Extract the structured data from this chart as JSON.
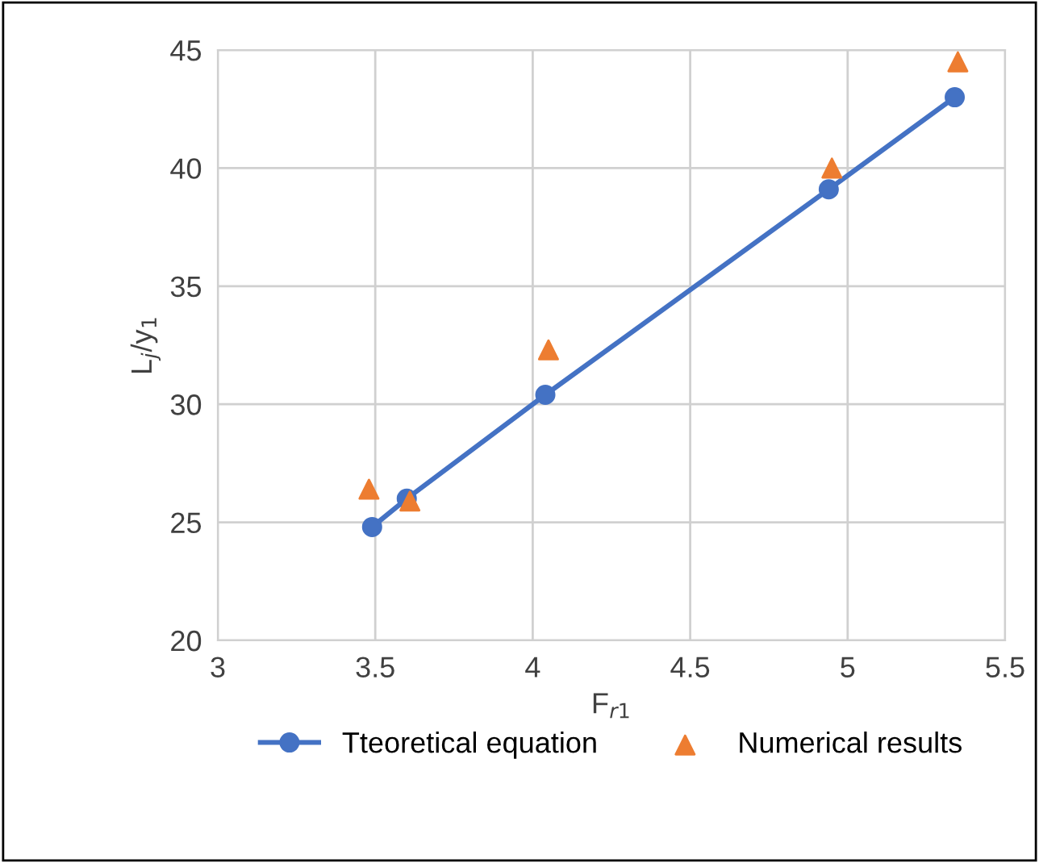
{
  "chart_data": {
    "type": "line",
    "xlabel": "F$_{r1}$",
    "ylabel": "L$_{j}$/y$_{1}$",
    "series": [
      {
        "name": "Tteoretical equation",
        "color": "#4472c4",
        "marker": "circle",
        "x": [
          3.49,
          3.6,
          4.04,
          4.94,
          5.34
        ],
        "values": [
          24.8,
          26.0,
          30.4,
          39.1,
          43.0
        ]
      },
      {
        "name": "Numerical results",
        "type": "scatter",
        "color": "#ed7d31",
        "marker": "triangle",
        "x": [
          3.48,
          3.61,
          4.05,
          4.95,
          5.35
        ],
        "values": [
          26.4,
          25.9,
          32.3,
          40.0,
          44.5
        ]
      }
    ],
    "xlim": [
      3,
      5.5
    ],
    "xticks": [
      3,
      3.5,
      4,
      4.5,
      5,
      5.5
    ],
    "ylim": [
      20,
      45
    ],
    "yticks": [
      20,
      25,
      30,
      35,
      40,
      45
    ],
    "grid": true,
    "legend": "bottom"
  }
}
